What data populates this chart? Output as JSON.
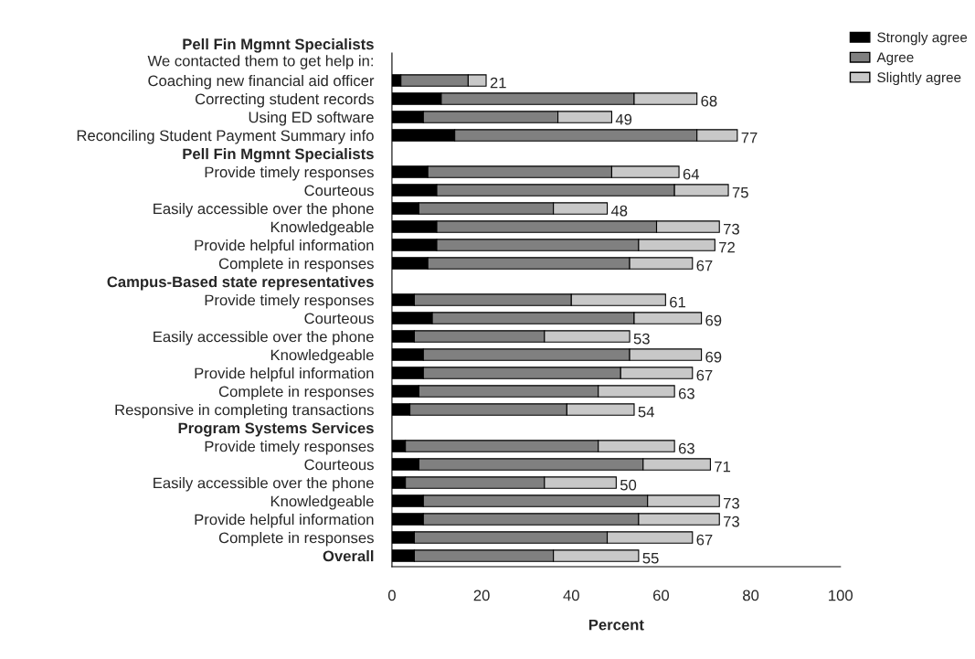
{
  "chart_data": {
    "type": "bar",
    "orientation": "horizontal",
    "stacked": true,
    "xlabel": "Percent",
    "xlim": [
      0,
      100
    ],
    "xticks": [
      0,
      20,
      40,
      60,
      80,
      100
    ],
    "grid": false,
    "annotations": [
      "We contacted them to get help in:"
    ],
    "legend": "top right",
    "categories": [
      "Pell Fin Mgmnt Specialists",
      null,
      "Coaching new financial aid officer",
      "Correcting student records",
      "Using ED software",
      "Reconciling Student Payment Summary info",
      "Pell Fin Mgmnt Specialists",
      "Provide timely responses",
      "Courteous",
      "Easily accessible over the phone",
      "Knowledgeable",
      "Provide helpful information",
      "Complete in responses",
      "Campus-Based state representatives",
      "Provide timely responses",
      "Courteous",
      "Easily accessible over the phone",
      "Knowledgeable",
      "Provide helpful information",
      "Complete in responses",
      "Responsive in completing transactions",
      "Program Systems Services",
      "Provide timely responses",
      "Courteous",
      "Easily accessible over the phone",
      "Knowledgeable",
      "Provide helpful information",
      "Complete in responses",
      "Overall"
    ],
    "series": [
      {
        "name": "Strongly agree",
        "color": "#000000",
        "values": [
          null,
          null,
          2,
          11,
          7,
          14,
          null,
          8,
          10,
          6,
          10,
          10,
          8,
          null,
          5,
          9,
          5,
          7,
          7,
          6,
          4,
          null,
          3,
          6,
          3,
          7,
          7,
          5,
          5
        ]
      },
      {
        "name": "Agree",
        "color": "#808080",
        "values": [
          null,
          null,
          15,
          43,
          30,
          54,
          null,
          41,
          53,
          30,
          49,
          45,
          45,
          null,
          35,
          45,
          29,
          46,
          44,
          40,
          35,
          null,
          43,
          50,
          31,
          50,
          48,
          43,
          31
        ]
      },
      {
        "name": "Slightly agree",
        "color": "#c8c8c8",
        "values": [
          null,
          null,
          4,
          14,
          12,
          9,
          null,
          15,
          12,
          12,
          14,
          17,
          14,
          null,
          21,
          15,
          19,
          16,
          16,
          17,
          15,
          null,
          17,
          15,
          16,
          16,
          18,
          19,
          19
        ]
      }
    ],
    "totals": [
      null,
      null,
      "21",
      "68",
      "49",
      "77",
      null,
      "64",
      "75",
      "48",
      "73",
      "72",
      "67",
      null,
      "61",
      "69",
      "53",
      "69",
      "67",
      "63",
      "54",
      null,
      "63",
      "71",
      "50",
      "73",
      "73",
      "67",
      "55"
    ]
  }
}
